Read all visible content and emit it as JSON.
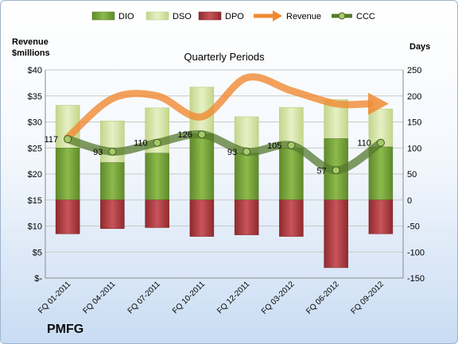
{
  "ticker": "PMFG",
  "chart_data": {
    "type": "bar",
    "title": "Quarterly Periods",
    "ylabel_left": "Revenue $millions",
    "ylabel_right": "Days",
    "categories": [
      "FQ 01-2011",
      "FQ 04-2011",
      "FQ 07-2011",
      "FQ 10-2011",
      "FQ 12-2011",
      "FQ 03-2012",
      "FQ 06-2012",
      "FQ 09-2012"
    ],
    "left_axis": {
      "min": 0,
      "max": 40,
      "step": 5,
      "ticks": [
        "$-",
        "$5",
        "$10",
        "$15",
        "$20",
        "$25",
        "$30",
        "$35",
        "$40"
      ]
    },
    "right_axis": {
      "min": -150,
      "max": 250,
      "step": 50,
      "ticks": [
        "-150",
        "-100",
        "-50",
        "0",
        "50",
        "100",
        "150",
        "200",
        "250"
      ]
    },
    "legend": {
      "placement": "top",
      "entries": [
        "DIO",
        "DSO",
        "DPO",
        "Revenue",
        "CCC"
      ]
    },
    "series": [
      {
        "name": "DIO",
        "axis": "right",
        "values": [
          100,
          72,
          90,
          127,
          90,
          100,
          118,
          102
        ],
        "color": "#77a33a"
      },
      {
        "name": "DSO",
        "axis": "right",
        "values": [
          82,
          80,
          87,
          90,
          70,
          78,
          75,
          73
        ],
        "color": "#d7e4a6"
      },
      {
        "name": "DPO",
        "axis": "right",
        "values": [
          -65,
          -55,
          -53,
          -70,
          -67,
          -70,
          -130,
          -65
        ],
        "color": "#b0393d"
      },
      {
        "name": "Revenue",
        "axis": "left",
        "values": [
          27,
          34.5,
          35,
          31,
          38.5,
          36,
          33.5,
          33.5
        ],
        "color": "#f08a32"
      },
      {
        "name": "CCC",
        "axis": "right",
        "values": [
          117,
          93,
          110,
          126,
          93,
          105,
          57,
          110
        ],
        "color": "#557a2d"
      }
    ],
    "ccc_labels": [
      "117",
      "93",
      "110",
      "126",
      "93",
      "105",
      "57",
      "110"
    ],
    "grid": true,
    "colors": {
      "dio": "#77a33a",
      "dso": "#d7e4a6",
      "dpo": "#b0393d",
      "revenue": "#f08a32",
      "ccc": "#557a2d"
    }
  }
}
